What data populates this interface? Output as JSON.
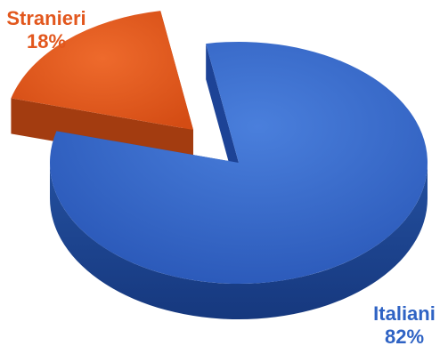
{
  "chart_data": {
    "type": "pie",
    "style": "3d-exploded",
    "title": "",
    "slices": [
      {
        "label": "Italiani",
        "value": 82,
        "value_label": "82%",
        "color": "#2f63c4",
        "side_color": "#1d4396"
      },
      {
        "label": "Stranieri",
        "value": 18,
        "value_label": "18%",
        "color": "#e2571d",
        "side_color": "#a33c10"
      }
    ],
    "legend": "none"
  }
}
